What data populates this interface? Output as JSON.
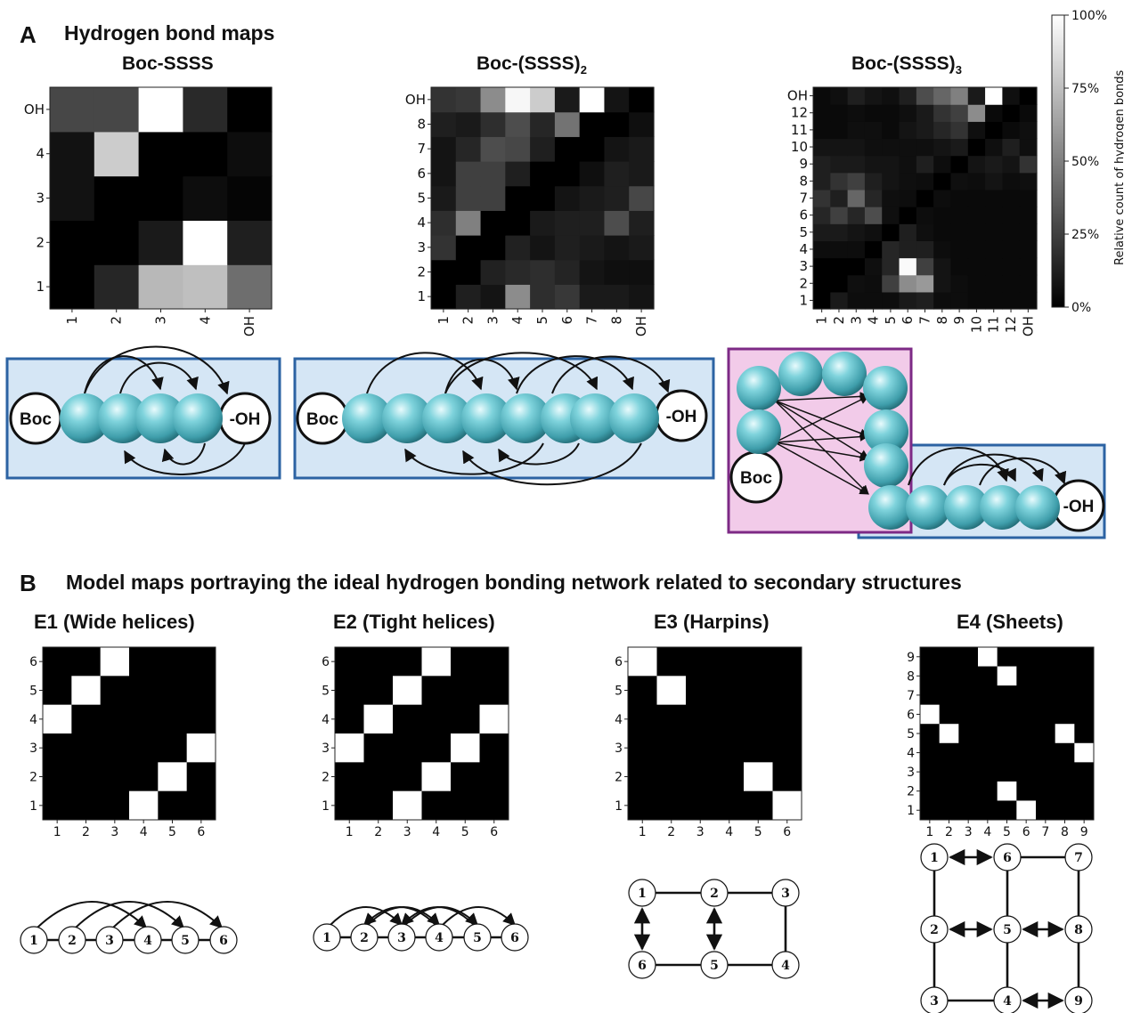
{
  "panel_a": {
    "letter": "A",
    "title": "Hydrogen bond maps"
  },
  "panel_b": {
    "letter": "B",
    "title": "Model maps portraying the ideal hydrogen bonding network related to secondary structures"
  },
  "schematics": {
    "boc": "Boc",
    "oh": "-OH"
  },
  "colorbar": {
    "label": "Relative count of hydrogen bonds",
    "ticks": [
      "100%",
      "75%",
      "50%",
      "25%",
      "0%"
    ]
  },
  "colors": {
    "sphere": "#5bc0cc",
    "box_blue": "#d5e6f5",
    "box_blue_border": "#2c63a3",
    "box_pink": "#f2cbe9",
    "box_pink_border": "#7d2a86"
  },
  "chart_data": [
    {
      "type": "heatmap",
      "title": "Boc-SSSS",
      "x_labels": [
        "1",
        "2",
        "3",
        "4",
        "OH"
      ],
      "y_labels": [
        "1",
        "2",
        "3",
        "4",
        "OH"
      ],
      "values": [
        [
          0.0,
          0.15,
          0.72,
          0.75,
          0.43
        ],
        [
          0.0,
          0.0,
          0.1,
          1.0,
          0.12
        ],
        [
          0.07,
          0.0,
          0.0,
          0.05,
          0.02
        ],
        [
          0.07,
          0.8,
          0.0,
          0.0,
          0.05
        ],
        [
          0.28,
          0.28,
          1.0,
          0.16,
          0.0
        ]
      ]
    },
    {
      "type": "heatmap",
      "title": "Boc-(SSSS)",
      "title_sub": "2",
      "x_labels": [
        "1",
        "2",
        "3",
        "4",
        "5",
        "6",
        "7",
        "8",
        "OH"
      ],
      "y_labels": [
        "1",
        "2",
        "3",
        "4",
        "5",
        "6",
        "7",
        "8",
        "OH"
      ],
      "values": [
        [
          0.0,
          0.12,
          0.08,
          0.55,
          0.18,
          0.22,
          0.1,
          0.1,
          0.08
        ],
        [
          0.0,
          0.0,
          0.13,
          0.16,
          0.18,
          0.14,
          0.08,
          0.06,
          0.06
        ],
        [
          0.2,
          0.0,
          0.0,
          0.13,
          0.08,
          0.12,
          0.1,
          0.08,
          0.1
        ],
        [
          0.18,
          0.5,
          0.0,
          0.0,
          0.1,
          0.12,
          0.12,
          0.3,
          0.12
        ],
        [
          0.1,
          0.25,
          0.25,
          0.0,
          0.0,
          0.08,
          0.1,
          0.12,
          0.28
        ],
        [
          0.08,
          0.25,
          0.25,
          0.12,
          0.0,
          0.0,
          0.06,
          0.12,
          0.1
        ],
        [
          0.08,
          0.15,
          0.3,
          0.28,
          0.12,
          0.0,
          0.0,
          0.08,
          0.1
        ],
        [
          0.12,
          0.1,
          0.18,
          0.3,
          0.15,
          0.45,
          0.0,
          0.0,
          0.06
        ],
        [
          0.2,
          0.22,
          0.55,
          0.97,
          0.8,
          0.1,
          1.0,
          0.08,
          0.0
        ]
      ]
    },
    {
      "type": "heatmap",
      "title": "Boc-(SSSS)",
      "title_sub": "3",
      "x_labels": [
        "1",
        "2",
        "3",
        "4",
        "5",
        "6",
        "7",
        "8",
        "9",
        "10",
        "11",
        "12",
        "OH"
      ],
      "y_labels": [
        "1",
        "2",
        "3",
        "4",
        "5",
        "6",
        "7",
        "8",
        "9",
        "10",
        "11",
        "12",
        "OH"
      ],
      "values": [
        [
          0.0,
          0.1,
          0.05,
          0.05,
          0.05,
          0.1,
          0.12,
          0.05,
          0.05,
          0.04,
          0.04,
          0.04,
          0.04
        ],
        [
          0.0,
          0.0,
          0.06,
          0.05,
          0.25,
          0.55,
          0.6,
          0.08,
          0.05,
          0.04,
          0.04,
          0.04,
          0.04
        ],
        [
          0.0,
          0.0,
          0.0,
          0.06,
          0.15,
          0.98,
          0.25,
          0.08,
          0.04,
          0.04,
          0.04,
          0.04,
          0.04
        ],
        [
          0.05,
          0.05,
          0.05,
          0.0,
          0.15,
          0.12,
          0.12,
          0.05,
          0.04,
          0.04,
          0.04,
          0.04,
          0.04
        ],
        [
          0.1,
          0.1,
          0.08,
          0.06,
          0.0,
          0.12,
          0.06,
          0.04,
          0.04,
          0.04,
          0.04,
          0.04,
          0.04
        ],
        [
          0.15,
          0.25,
          0.15,
          0.3,
          0.06,
          0.0,
          0.05,
          0.04,
          0.04,
          0.04,
          0.04,
          0.04,
          0.04
        ],
        [
          0.2,
          0.12,
          0.4,
          0.15,
          0.06,
          0.05,
          0.0,
          0.05,
          0.04,
          0.04,
          0.04,
          0.04,
          0.04
        ],
        [
          0.12,
          0.2,
          0.25,
          0.12,
          0.08,
          0.06,
          0.05,
          0.0,
          0.06,
          0.05,
          0.08,
          0.05,
          0.06
        ],
        [
          0.12,
          0.1,
          0.1,
          0.08,
          0.08,
          0.06,
          0.12,
          0.05,
          0.0,
          0.08,
          0.1,
          0.08,
          0.2
        ],
        [
          0.08,
          0.08,
          0.08,
          0.06,
          0.06,
          0.06,
          0.06,
          0.08,
          0.1,
          0.0,
          0.06,
          0.12,
          0.06
        ],
        [
          0.04,
          0.04,
          0.06,
          0.06,
          0.04,
          0.08,
          0.1,
          0.15,
          0.2,
          0.06,
          0.0,
          0.04,
          0.06
        ],
        [
          0.04,
          0.04,
          0.05,
          0.04,
          0.04,
          0.06,
          0.1,
          0.2,
          0.25,
          0.55,
          0.04,
          0.0,
          0.04
        ],
        [
          0.04,
          0.06,
          0.12,
          0.08,
          0.06,
          0.12,
          0.3,
          0.4,
          0.5,
          0.1,
          1.0,
          0.06,
          0.0
        ]
      ]
    },
    {
      "type": "heatmap",
      "title": "E1 (Wide helices)",
      "x_labels": [
        "1",
        "2",
        "3",
        "4",
        "5",
        "6"
      ],
      "y_labels": [
        "1",
        "2",
        "3",
        "4",
        "5",
        "6"
      ],
      "cells": [
        [
          4,
          1
        ],
        [
          5,
          2
        ],
        [
          6,
          3
        ],
        [
          1,
          4
        ],
        [
          2,
          5
        ],
        [
          3,
          6
        ]
      ]
    },
    {
      "type": "heatmap",
      "title": "E2 (Tight helices)",
      "x_labels": [
        "1",
        "2",
        "3",
        "4",
        "5",
        "6"
      ],
      "y_labels": [
        "1",
        "2",
        "3",
        "4",
        "5",
        "6"
      ],
      "cells": [
        [
          3,
          1
        ],
        [
          4,
          2
        ],
        [
          5,
          3
        ],
        [
          6,
          4
        ],
        [
          1,
          3
        ],
        [
          2,
          4
        ],
        [
          3,
          5
        ],
        [
          4,
          6
        ]
      ]
    },
    {
      "type": "heatmap",
      "title": "E3 (Harpins)",
      "x_labels": [
        "1",
        "2",
        "3",
        "4",
        "5",
        "6"
      ],
      "y_labels": [
        "1",
        "2",
        "3",
        "4",
        "5",
        "6"
      ],
      "cells": [
        [
          6,
          1
        ],
        [
          5,
          2
        ],
        [
          1,
          6
        ],
        [
          2,
          5
        ]
      ]
    },
    {
      "type": "heatmap",
      "title": "E4 (Sheets)",
      "x_labels": [
        "1",
        "2",
        "3",
        "4",
        "5",
        "6",
        "7",
        "8",
        "9"
      ],
      "y_labels": [
        "1",
        "2",
        "3",
        "4",
        "5",
        "6",
        "7",
        "8",
        "9"
      ],
      "cells": [
        [
          6,
          1
        ],
        [
          5,
          2
        ],
        [
          8,
          5
        ],
        [
          9,
          4
        ],
        [
          1,
          6
        ],
        [
          2,
          5
        ],
        [
          5,
          8
        ],
        [
          4,
          9
        ]
      ]
    }
  ],
  "graphs": {
    "e1": {
      "nodes": [
        "1",
        "2",
        "3",
        "4",
        "5",
        "6"
      ]
    },
    "e2": {
      "nodes": [
        "1",
        "2",
        "3",
        "4",
        "5",
        "6"
      ]
    },
    "e3": {
      "nodes": [
        "1",
        "2",
        "3",
        "4",
        "5",
        "6"
      ]
    },
    "e4": {
      "nodes": [
        "1",
        "2",
        "3",
        "4",
        "5",
        "6",
        "7",
        "8",
        "9"
      ]
    }
  }
}
